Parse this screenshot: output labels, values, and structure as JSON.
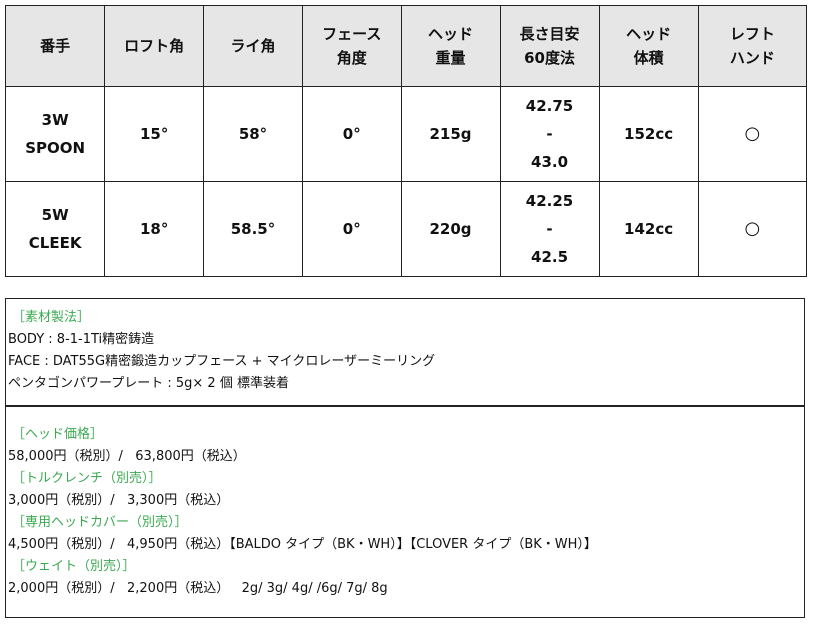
{
  "spec_table": {
    "headers": [
      [
        "番手"
      ],
      [
        "ロフト角"
      ],
      [
        "ライ角"
      ],
      [
        "フェース",
        "角度"
      ],
      [
        "ヘッド",
        "重量"
      ],
      [
        "長さ目安",
        "60度法"
      ],
      [
        "ヘッド",
        "体積"
      ],
      [
        "レフト",
        "ハンド"
      ]
    ],
    "rows": [
      {
        "number": [
          "3W",
          "SPOON"
        ],
        "loft": "15°",
        "lie": "58°",
        "face": "0°",
        "weight": "215g",
        "length": [
          "42.75",
          "-",
          "43.0"
        ],
        "volume": "152cc",
        "left": "○"
      },
      {
        "number": [
          "5W",
          "CLEEK"
        ],
        "loft": "18°",
        "lie": "58.5°",
        "face": "0°",
        "weight": "220g",
        "length": [
          "42.25",
          "-",
          "42.5"
        ],
        "volume": "142cc",
        "left": "○"
      }
    ]
  },
  "material": {
    "heading": "［素材製法］",
    "lines": [
      "BODY : 8-1-1Ti精密鋳造",
      "FACE : DAT55G精密鍛造カップフェース + マイクロレーザーミーリング",
      "ペンタゴンパワープレート : 5g× 2 個 標準装着"
    ]
  },
  "prices": [
    {
      "heading": "［ヘッド価格］",
      "text": "58,000円（税別）/   63,800円（税込）"
    },
    {
      "heading": "［トルクレンチ（別売）］",
      "text": "3,000円（税別）/   3,300円（税込）"
    },
    {
      "heading": "［専用ヘッドカバー（別売）］",
      "text": "4,500円（税別）/   4,950円（税込）【BALDO タイプ（BK・WH）】【CLOVER タイプ（BK・WH）】"
    },
    {
      "heading": "［ウェイト（別売）］",
      "text": "2,000円（税別）/   2,200円（税込）   2g/ 3g/ 4g/ /6g/ 7g/ 8g"
    }
  ],
  "colors": {
    "heading_green": "#3aaa50",
    "header_bg": "#e6e6e6"
  }
}
